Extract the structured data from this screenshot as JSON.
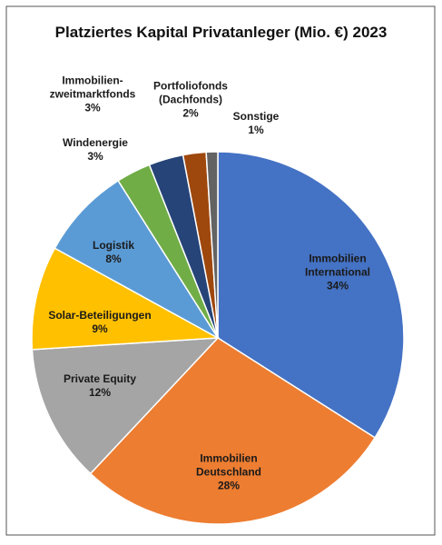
{
  "chart_data": {
    "type": "pie",
    "title": "Platziertes Kapital Privatanleger (Mio. €) 2023",
    "categories": [
      "Immobilien International",
      "Immobilien Deutschland",
      "Private Equity",
      "Solar-Beteiligungen",
      "Logistik",
      "Windenergie",
      "Immobilien-zweitmarktfonds",
      "Portfoliofonds (Dachfonds)",
      "Sonstige"
    ],
    "values": [
      34,
      28,
      12,
      9,
      8,
      3,
      3,
      2,
      1
    ],
    "value_labels": [
      "34%",
      "28%",
      "12%",
      "9%",
      "8%",
      "3%",
      "3%",
      "2%",
      "1%"
    ],
    "colors": [
      "#4472c4",
      "#ed7d31",
      "#a5a5a5",
      "#ffc000",
      "#5b9bd5",
      "#70ad47",
      "#264478",
      "#9e480e",
      "#636363"
    ]
  }
}
